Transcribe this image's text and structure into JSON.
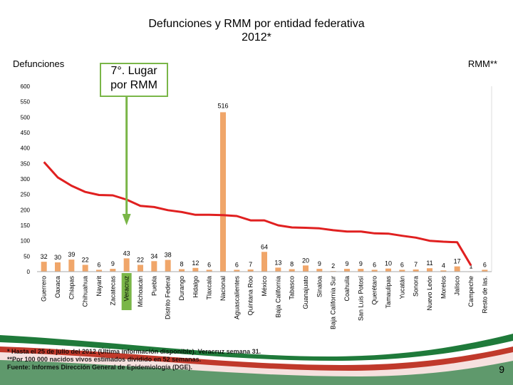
{
  "title_line1": "Defunciones y RMM por entidad federativa",
  "title_line2": "2012*",
  "left_axis_label": "Defunciones",
  "right_axis_label": "RMM**",
  "callout_line1": "7°. Lugar",
  "callout_line2": "por RMM",
  "footnote_1": "* Hasta el 25 de julio del 2012 (Última información disponible). Veracruz semana 31.",
  "footnote_2": "**Por 100 000 nacidos vivos estimados dividido en 52 semanas.",
  "footnote_3": "Fuente: Informes Dirección General de Epidemiología (DGE).",
  "page_number": "9",
  "colors": {
    "bar": "#f0a66a",
    "bar_highlight": "#7ab648",
    "line": "#e02020",
    "arrow": "#7ab648"
  },
  "chart_data": {
    "type": "bar",
    "categories": [
      "Guerrero",
      "Oaxaca",
      "Chiapas",
      "Chihuahua",
      "Nayarit",
      "Zacatecas",
      "Veracruz",
      "Michoacán",
      "Puebla",
      "Distrito Federal",
      "Durango",
      "Hidalgo",
      "Tlaxcala",
      "Nacional",
      "Aguascalientes",
      "Quintana Roo",
      "México",
      "Baja California",
      "Tabasco",
      "Guanajuato",
      "Sinaloa",
      "Baja California Sur",
      "Coahuila",
      "San Luis Potosí",
      "Querétaro",
      "Tamaulipas",
      "Yucatán",
      "Sonora",
      "Nuevo León",
      "Morelos",
      "Jalisco",
      "Campeche",
      "Resto de las."
    ],
    "highlight_category": "Veracruz",
    "series": [
      {
        "values": [
          32,
          30,
          39,
          22,
          6,
          9,
          43,
          22,
          34,
          38,
          8,
          12,
          6,
          516,
          6,
          7,
          64,
          13,
          8,
          20,
          9,
          2,
          9,
          9,
          6,
          10,
          6,
          7,
          11,
          4,
          17,
          1,
          6
        ]
      },
      {
        "values": [
          355,
          305,
          278,
          258,
          248,
          247,
          233,
          213,
          209,
          199,
          193,
          184,
          184,
          183,
          180,
          166,
          166,
          150,
          143,
          142,
          140,
          134,
          130,
          130,
          124,
          123,
          116,
          110,
          100,
          97,
          95,
          20,
          null
        ]
      }
    ],
    "bar_value_labels": [
      "32",
      "30",
      "39",
      "22",
      "6",
      "9",
      "43",
      "22",
      "34",
      "38",
      "8",
      "12",
      "6",
      "516",
      "6",
      "7",
      "64",
      "13",
      "8",
      "20",
      "9",
      "2",
      "9",
      "9",
      "6",
      "10",
      "6",
      "7",
      "11",
      "4",
      "17",
      "1",
      "6"
    ],
    "yticks": [
      "0",
      "50",
      "100",
      "150",
      "200",
      "250",
      "300",
      "350",
      "400",
      "450",
      "500",
      "550",
      "600"
    ],
    "ylim": [
      0,
      600
    ]
  }
}
